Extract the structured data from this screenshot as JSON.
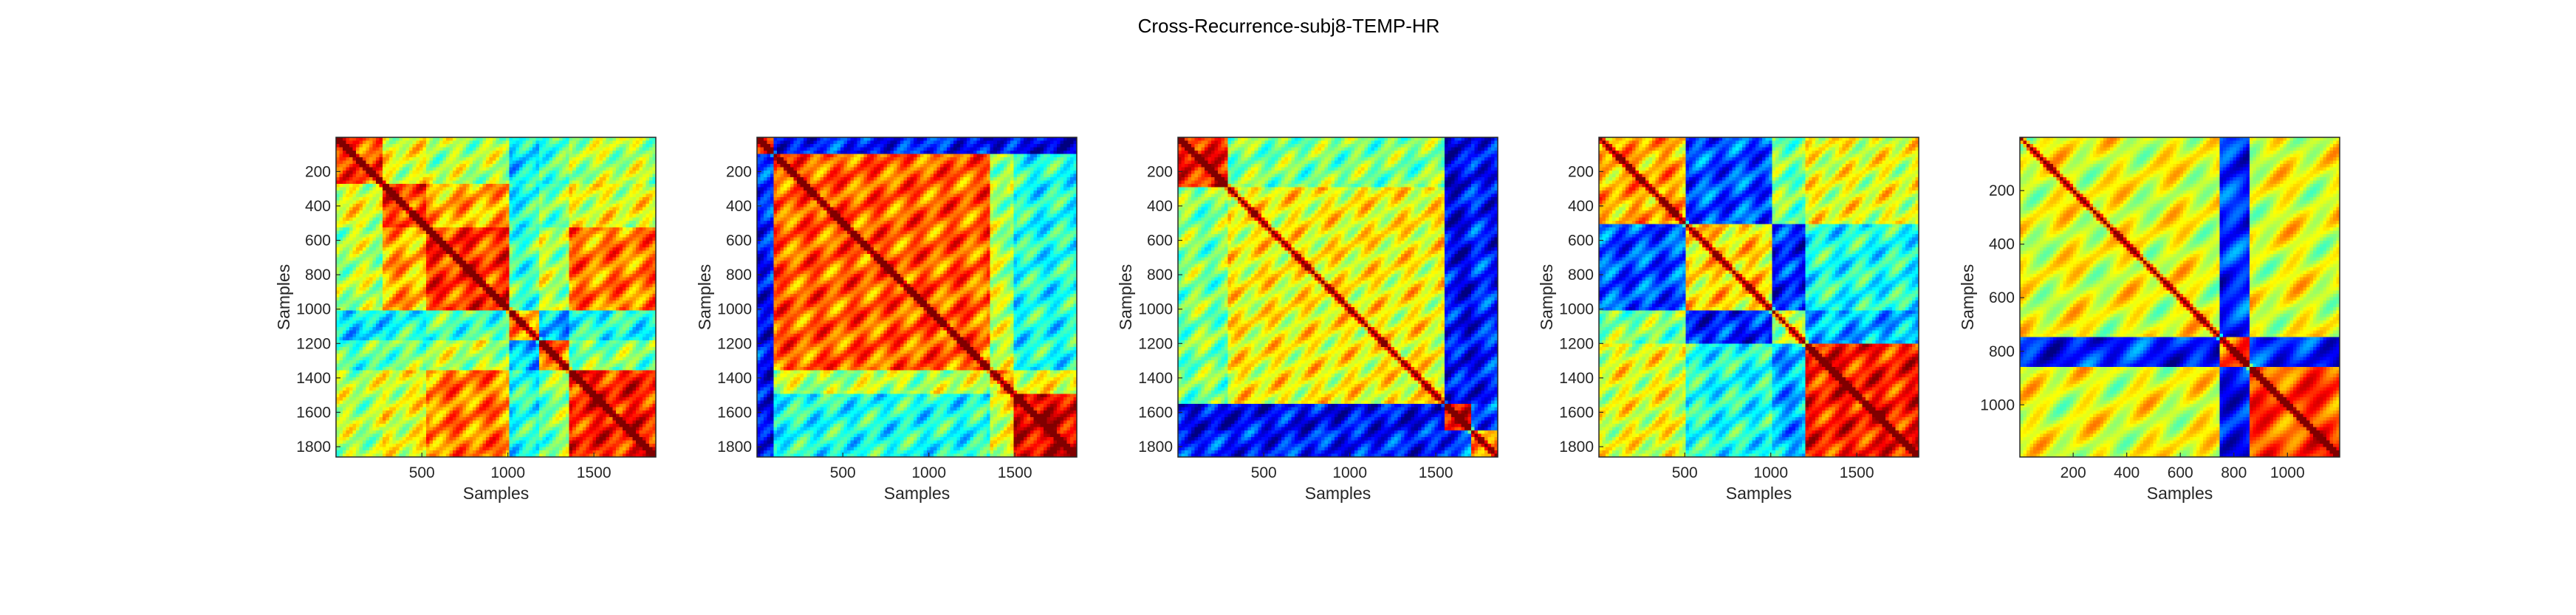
{
  "figure": {
    "title": "Cross-Recurrence-subj8-TEMP-HR"
  },
  "chart_data": [
    {
      "type": "heatmap",
      "colormap": "jet",
      "xlabel": "Samples",
      "ylabel": "Samples",
      "xlim": [
        1,
        1860
      ],
      "ylim": [
        1,
        1860
      ],
      "y_reversed": true,
      "xticks": [
        500,
        1000,
        1500
      ],
      "yticks": [
        200,
        400,
        600,
        800,
        1000,
        1200,
        1400,
        1600,
        1800
      ],
      "blocks": [
        [
          0,
          280
        ],
        [
          280,
          520
        ],
        [
          520,
          1000
        ],
        [
          1000,
          1180
        ],
        [
          1180,
          1360
        ],
        [
          1360,
          1860
        ]
      ],
      "block_levels": [
        [
          0.8,
          0.6,
          0.55,
          0.35,
          0.45,
          0.55
        ],
        [
          0.6,
          0.8,
          0.7,
          0.4,
          0.5,
          0.6
        ],
        [
          0.55,
          0.7,
          0.82,
          0.45,
          0.55,
          0.75
        ],
        [
          0.35,
          0.4,
          0.45,
          0.7,
          0.3,
          0.4
        ],
        [
          0.45,
          0.5,
          0.55,
          0.3,
          0.75,
          0.5
        ],
        [
          0.55,
          0.6,
          0.75,
          0.4,
          0.5,
          0.85
        ]
      ]
    },
    {
      "type": "heatmap",
      "colormap": "jet",
      "xlabel": "Samples",
      "ylabel": "Samples",
      "xlim": [
        1,
        1860
      ],
      "ylim": [
        1,
        1860
      ],
      "y_reversed": true,
      "xticks": [
        500,
        1000,
        1500
      ],
      "yticks": [
        200,
        400,
        600,
        800,
        1000,
        1200,
        1400,
        1600,
        1800
      ],
      "blocks": [
        [
          0,
          100
        ],
        [
          100,
          1350
        ],
        [
          1350,
          1500
        ],
        [
          1500,
          1860
        ]
      ],
      "block_levels": [
        [
          0.8,
          0.15,
          0.1,
          0.1
        ],
        [
          0.15,
          0.78,
          0.55,
          0.4
        ],
        [
          0.1,
          0.55,
          0.7,
          0.6
        ],
        [
          0.1,
          0.4,
          0.6,
          0.9
        ]
      ]
    },
    {
      "type": "heatmap",
      "colormap": "jet",
      "xlabel": "Samples",
      "ylabel": "Samples",
      "xlim": [
        1,
        1860
      ],
      "ylim": [
        1,
        1860
      ],
      "y_reversed": true,
      "xticks": [
        500,
        1000,
        1500
      ],
      "yticks": [
        200,
        400,
        600,
        800,
        1000,
        1200,
        1400,
        1600,
        1800
      ],
      "blocks": [
        [
          0,
          300
        ],
        [
          300,
          1550
        ],
        [
          1550,
          1700
        ],
        [
          1700,
          1860
        ]
      ],
      "block_levels": [
        [
          0.85,
          0.5,
          0.1,
          0.15
        ],
        [
          0.5,
          0.62,
          0.12,
          0.15
        ],
        [
          0.1,
          0.12,
          0.85,
          0.2
        ],
        [
          0.15,
          0.15,
          0.2,
          0.7
        ]
      ]
    },
    {
      "type": "heatmap",
      "colormap": "jet",
      "xlabel": "Samples",
      "ylabel": "Samples",
      "xlim": [
        1,
        1860
      ],
      "ylim": [
        1,
        1860
      ],
      "y_reversed": true,
      "xticks": [
        500,
        1000,
        1500
      ],
      "yticks": [
        200,
        400,
        600,
        800,
        1000,
        1200,
        1400,
        1600,
        1800
      ],
      "blocks": [
        [
          0,
          500
        ],
        [
          500,
          1000
        ],
        [
          1000,
          1200
        ],
        [
          1200,
          1860
        ]
      ],
      "block_levels": [
        [
          0.7,
          0.2,
          0.5,
          0.6
        ],
        [
          0.2,
          0.65,
          0.15,
          0.4
        ],
        [
          0.5,
          0.15,
          0.55,
          0.3
        ],
        [
          0.6,
          0.4,
          0.3,
          0.85
        ]
      ]
    },
    {
      "type": "heatmap",
      "colormap": "jet",
      "xlabel": "Samples",
      "ylabel": "Samples",
      "xlim": [
        1,
        1195
      ],
      "ylim": [
        1,
        1195
      ],
      "y_reversed": true,
      "xticks": [
        200,
        400,
        600,
        800,
        1000
      ],
      "yticks": [
        200,
        400,
        600,
        800,
        1000
      ],
      "blocks": [
        [
          0,
          750
        ],
        [
          750,
          860
        ],
        [
          860,
          1195
        ]
      ],
      "block_levels": [
        [
          0.6,
          0.15,
          0.6
        ],
        [
          0.15,
          0.8,
          0.15
        ],
        [
          0.6,
          0.15,
          0.8
        ]
      ]
    }
  ]
}
